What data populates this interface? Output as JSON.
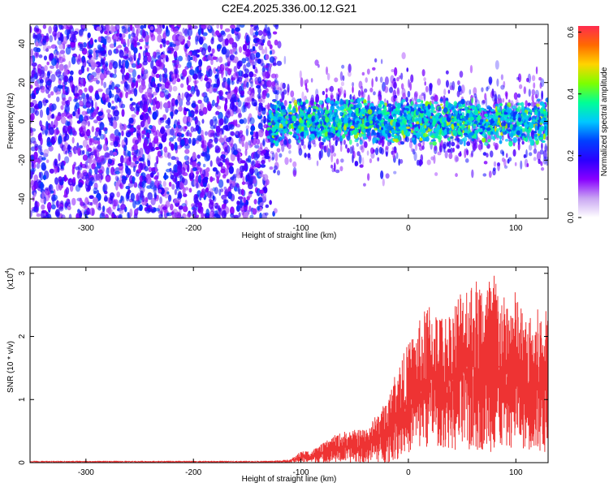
{
  "chart_data": [
    {
      "type": "heatmap",
      "title": "C2E4.2025.336.00.12.G21",
      "xlabel": "Height of straight line (km)",
      "ylabel": "Frequency (Hz)",
      "xlim": [
        -352,
        130
      ],
      "ylim": [
        -50,
        50
      ],
      "x_ticks": [
        -300,
        -200,
        -100,
        0,
        100
      ],
      "y_ticks": [
        -40,
        -20,
        0,
        20,
        40
      ],
      "colorbar": {
        "label": "Normalized spectral amplitude",
        "range": [
          0.0,
          0.62
        ],
        "ticks": [
          "0.0",
          "0.2",
          "0.4",
          "0.6"
        ],
        "colormap": [
          "#ffffff",
          "#c9a6f2",
          "#8800ff",
          "#2a00ff",
          "#0040ff",
          "#00c8ff",
          "#00ff96",
          "#7dff00",
          "#ffd400",
          "#ff6a00",
          "#ff2b4e"
        ]
      },
      "regions": [
        {
          "x_range": [
            -352,
            -130
          ],
          "freq_range": [
            -50,
            50
          ],
          "amplitude": "low (purple)"
        },
        {
          "x_range": [
            -130,
            130
          ],
          "freq_range": [
            -12,
            12
          ],
          "amplitude": "moderate to high (blue-green, occasional yellow)"
        }
      ]
    },
    {
      "type": "area",
      "xlabel": "Height of straight line (km)",
      "ylabel": "SNR (10 * v/v)",
      "y_multiplier": "(x10",
      "y_multiplier_exp": "4",
      "xlim": [
        -352,
        130
      ],
      "ylim": [
        0,
        3.1
      ],
      "x_ticks": [
        -300,
        -200,
        -100,
        0,
        100
      ],
      "y_ticks": [
        0,
        1,
        2,
        3
      ],
      "color": "#ee3333",
      "envelope": {
        "x": [
          -352,
          -130,
          -110,
          -100,
          -90,
          -80,
          -70,
          -60,
          -50,
          -40,
          -30,
          -20,
          -10,
          0,
          10,
          20,
          30,
          40,
          50,
          60,
          70,
          80,
          90,
          100,
          110,
          120,
          130
        ],
        "y_max": [
          0.03,
          0.03,
          0.05,
          0.18,
          0.2,
          0.3,
          0.42,
          0.5,
          0.52,
          0.55,
          0.75,
          1.0,
          1.55,
          1.9,
          2.25,
          2.6,
          2.35,
          2.45,
          2.9,
          2.95,
          2.9,
          3.05,
          2.6,
          2.75,
          2.25,
          2.45,
          2.4
        ],
        "y_min": [
          0,
          0,
          0,
          0,
          0,
          0,
          0,
          0,
          0,
          0,
          0,
          0,
          0.05,
          0.15,
          0.2,
          0.25,
          0.25,
          0.2,
          0.1,
          0.15,
          0.2,
          0.15,
          0.2,
          0.25,
          0.2,
          0.15,
          0.1
        ]
      }
    }
  ]
}
